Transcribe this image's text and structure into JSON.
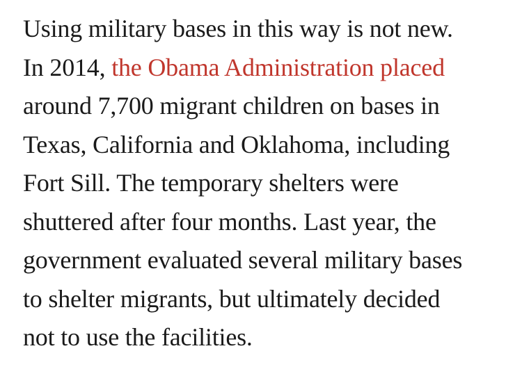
{
  "page": {
    "background": "#ffffff"
  },
  "paragraph": {
    "text_color": "#1a1a1a",
    "link_color": "#c0362c",
    "full_text": "Using military bases in this way is not new. In 2014, the Obama Administration placed around 7,700 migrant children on bases in Texas, California and Oklahoma, including Fort Sill. The temporary shelters were shuttered after four months. Last year, the government evaluated several military bases to shelter migrants, but ultimately decided not to use the facilities.",
    "link_text": "the Obama Administration placed",
    "lines": [
      {
        "segments": [
          {
            "text": "Using military bases in this way is not new."
          }
        ]
      },
      {
        "segments": [
          {
            "text": "In 2014, "
          },
          {
            "text": "the Obama Administration placed"
          }
        ]
      },
      {
        "segments": [
          {
            "text": "around 7,700 migrant children on bases in"
          }
        ]
      },
      {
        "segments": [
          {
            "text": "Texas, California and Oklahoma, including"
          }
        ]
      },
      {
        "segments": [
          {
            "text": "Fort Sill. The temporary shelters were"
          }
        ]
      },
      {
        "segments": [
          {
            "text": "shuttered after four months. Last year, the"
          }
        ]
      },
      {
        "segments": [
          {
            "text": "government evaluated several military bases"
          }
        ]
      },
      {
        "segments": [
          {
            "text": "to shelter migrants, but ultimately decided"
          }
        ]
      },
      {
        "segments": [
          {
            "text": "not to use the facilities."
          }
        ]
      }
    ]
  }
}
